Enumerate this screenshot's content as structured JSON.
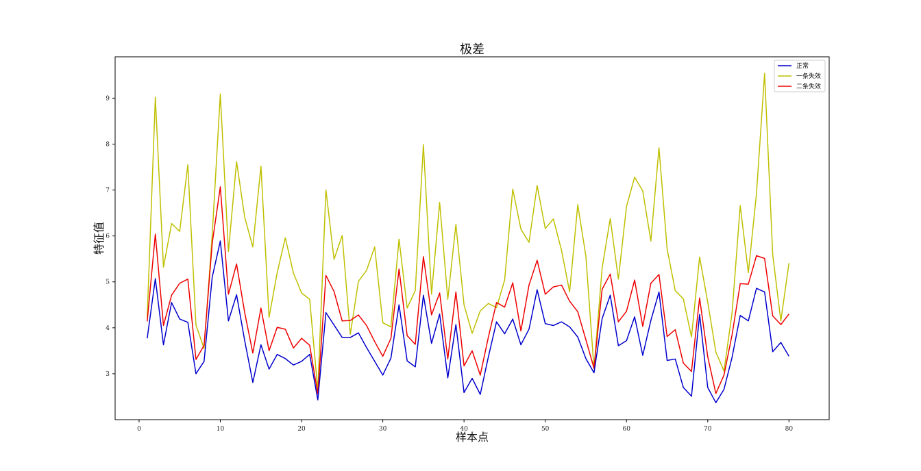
{
  "chart_data": {
    "type": "line",
    "title": "极差",
    "xlabel": "样本点",
    "ylabel": "特征值",
    "xlim": [
      -2.95,
      84.95
    ],
    "ylim": [
      2.0,
      9.9
    ],
    "xticks": [
      0,
      10,
      20,
      30,
      40,
      50,
      60,
      70,
      80
    ],
    "yticks": [
      3,
      4,
      5,
      6,
      7,
      8,
      9
    ],
    "grid": false,
    "legend_position": "top-right",
    "x": [
      1,
      2,
      3,
      4,
      5,
      6,
      7,
      8,
      9,
      10,
      11,
      12,
      13,
      14,
      15,
      16,
      17,
      18,
      19,
      20,
      21,
      22,
      23,
      24,
      25,
      26,
      27,
      28,
      29,
      30,
      31,
      32,
      33,
      34,
      35,
      36,
      37,
      38,
      39,
      40,
      41,
      42,
      43,
      44,
      45,
      46,
      47,
      48,
      49,
      50,
      51,
      52,
      53,
      54,
      55,
      56,
      57,
      58,
      59,
      60,
      61,
      62,
      63,
      64,
      65,
      66,
      67,
      68,
      69,
      70,
      71,
      72,
      73,
      74,
      75,
      76,
      77,
      78,
      79,
      80
    ],
    "series": [
      {
        "name": "正常",
        "color": "#0000cc",
        "values": [
          3.77,
          5.07,
          3.63,
          4.55,
          4.19,
          4.12,
          3.0,
          3.27,
          5.1,
          5.89,
          4.15,
          4.72,
          3.72,
          2.81,
          3.63,
          3.1,
          3.42,
          3.33,
          3.19,
          3.27,
          3.42,
          2.43,
          4.33,
          4.06,
          3.79,
          3.79,
          3.89,
          3.57,
          3.27,
          2.97,
          3.34,
          4.5,
          3.28,
          3.15,
          4.71,
          3.66,
          4.3,
          2.91,
          4.07,
          2.59,
          2.9,
          2.55,
          3.37,
          4.13,
          3.87,
          4.19,
          3.63,
          3.97,
          4.83,
          4.09,
          4.05,
          4.13,
          4.02,
          3.8,
          3.33,
          3.02,
          4.2,
          4.71,
          3.61,
          3.72,
          4.24,
          3.4,
          4.16,
          4.78,
          3.29,
          3.32,
          2.7,
          2.51,
          4.29,
          2.7,
          2.37,
          2.66,
          3.36,
          4.27,
          4.15,
          4.86,
          4.78,
          3.48,
          3.68,
          3.38
        ]
      },
      {
        "name": "一条失效",
        "color": "#bfbf00",
        "values": [
          4.23,
          9.02,
          5.32,
          6.27,
          6.1,
          7.55,
          4.06,
          3.55,
          6.02,
          9.09,
          5.66,
          7.62,
          6.41,
          5.76,
          7.52,
          4.23,
          5.2,
          5.96,
          5.19,
          4.76,
          4.62,
          2.64,
          7.0,
          5.49,
          6.01,
          3.86,
          5.01,
          5.25,
          5.76,
          4.11,
          4.02,
          5.93,
          4.43,
          4.81,
          7.99,
          4.73,
          6.73,
          4.62,
          6.25,
          4.5,
          3.88,
          4.37,
          4.53,
          4.44,
          5.04,
          7.02,
          6.15,
          5.86,
          7.1,
          6.16,
          6.37,
          5.69,
          4.78,
          6.68,
          5.56,
          3.11,
          5.3,
          6.38,
          5.06,
          6.64,
          7.28,
          6.98,
          5.89,
          7.92,
          5.72,
          4.81,
          4.63,
          3.8,
          5.54,
          4.56,
          3.47,
          3.06,
          4.33,
          6.66,
          5.2,
          6.92,
          9.54,
          5.59,
          4.15,
          5.41
        ]
      },
      {
        "name": "二条失效",
        "color": "#ee0000",
        "values": [
          4.14,
          6.04,
          4.05,
          4.71,
          4.97,
          5.06,
          3.31,
          3.62,
          5.84,
          7.07,
          4.73,
          5.39,
          4.33,
          3.45,
          4.43,
          3.5,
          4.01,
          3.97,
          3.56,
          3.77,
          3.62,
          2.56,
          5.14,
          4.79,
          4.15,
          4.16,
          4.28,
          4.05,
          3.7,
          3.38,
          3.77,
          5.28,
          3.83,
          3.64,
          5.55,
          4.28,
          4.76,
          3.32,
          4.78,
          3.17,
          3.5,
          2.97,
          3.8,
          4.55,
          4.45,
          4.98,
          3.93,
          4.93,
          5.47,
          4.73,
          4.89,
          4.93,
          4.58,
          4.35,
          3.74,
          3.12,
          4.84,
          5.17,
          4.13,
          4.36,
          5.04,
          4.03,
          4.97,
          5.16,
          3.81,
          3.96,
          3.23,
          3.05,
          4.65,
          3.37,
          2.57,
          2.97,
          3.85,
          4.96,
          4.95,
          5.57,
          5.51,
          4.26,
          4.07,
          4.3
        ]
      }
    ]
  }
}
